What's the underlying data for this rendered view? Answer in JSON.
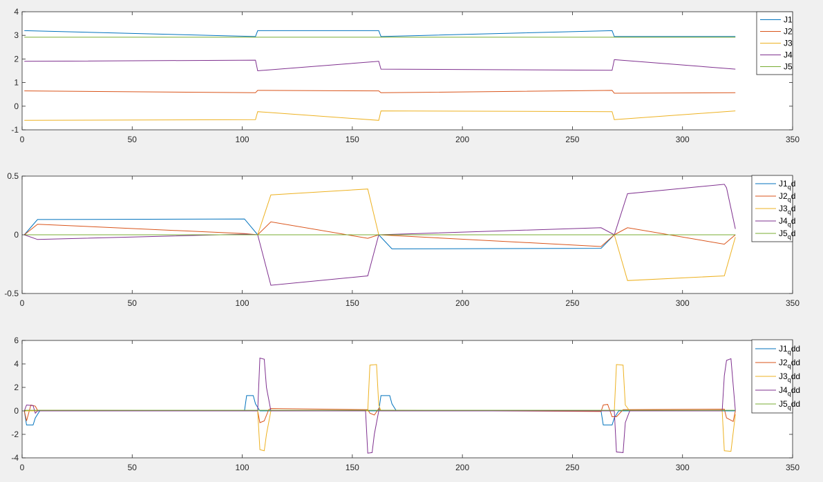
{
  "chart_data": [
    {
      "type": "line",
      "title": "",
      "xlabel": "",
      "ylabel": "",
      "xlim": [
        0,
        350
      ],
      "ylim": [
        -1,
        4
      ],
      "xticks": [
        "0",
        "50",
        "100",
        "150",
        "200",
        "250",
        "300",
        "350"
      ],
      "yticks": [
        "-1",
        "0",
        "1",
        "2",
        "3",
        "4"
      ],
      "legend_position": "top-right",
      "series": [
        {
          "name": "J1",
          "color": "#0072bd",
          "x": [
            1,
            106,
            107,
            162,
            163,
            268,
            269,
            324
          ],
          "y": [
            3.2,
            2.95,
            3.2,
            3.2,
            2.95,
            3.2,
            2.95,
            2.95
          ]
        },
        {
          "name": "J2",
          "color": "#d95319",
          "x": [
            1,
            106,
            107,
            162,
            163,
            268,
            269,
            324
          ],
          "y": [
            0.65,
            0.57,
            0.67,
            0.65,
            0.57,
            0.67,
            0.55,
            0.57
          ]
        },
        {
          "name": "J3",
          "color": "#edb120",
          "x": [
            1,
            106,
            107,
            162,
            163,
            268,
            269,
            324
          ],
          "y": [
            -0.6,
            -0.57,
            -0.23,
            -0.6,
            -0.2,
            -0.23,
            -0.57,
            -0.2
          ]
        },
        {
          "name": "J4",
          "color": "#7e2f8e",
          "x": [
            1,
            106,
            107,
            162,
            163,
            268,
            269,
            324
          ],
          "y": [
            1.9,
            1.95,
            1.5,
            1.9,
            1.57,
            1.52,
            1.97,
            1.57
          ]
        },
        {
          "name": "J5",
          "color": "#77ac30",
          "x": [
            1,
            324
          ],
          "y": [
            2.92,
            2.92
          ]
        }
      ]
    },
    {
      "type": "line",
      "title": "",
      "xlabel": "",
      "ylabel": "",
      "xlim": [
        0,
        350
      ],
      "ylim": [
        -0.5,
        0.5
      ],
      "xticks": [
        "0",
        "50",
        "100",
        "150",
        "200",
        "250",
        "300",
        "350"
      ],
      "yticks": [
        "-0.5",
        "0",
        "0.5"
      ],
      "legend_position": "top-right",
      "series": [
        {
          "name": "J1",
          "sub": "q",
          "suffix": "d",
          "color": "#0072bd",
          "x": [
            1,
            7,
            101,
            107,
            162,
            168,
            263,
            269,
            324
          ],
          "y": [
            0,
            0.13,
            0.135,
            0,
            0,
            -0.12,
            -0.115,
            0,
            0
          ]
        },
        {
          "name": "J2",
          "sub": "q",
          "suffix": "d",
          "color": "#d95319",
          "x": [
            1,
            7,
            101,
            107,
            113,
            157,
            162,
            263,
            269,
            275,
            319,
            324
          ],
          "y": [
            0,
            0.09,
            0.01,
            0,
            0.11,
            -0.03,
            0,
            -0.1,
            0,
            0.06,
            -0.08,
            0
          ]
        },
        {
          "name": "J3",
          "sub": "q",
          "suffix": "d",
          "color": "#edb120",
          "x": [
            1,
            107,
            113,
            157,
            162,
            263,
            269,
            275,
            319,
            324
          ],
          "y": [
            0,
            0,
            0.34,
            0.39,
            0,
            0,
            0,
            -0.39,
            -0.35,
            -0.02
          ]
        },
        {
          "name": "J4",
          "sub": "q",
          "suffix": "d",
          "color": "#7e2f8e",
          "x": [
            1,
            7,
            101,
            107,
            113,
            157,
            162,
            263,
            269,
            275,
            319,
            320,
            324
          ],
          "y": [
            0,
            -0.04,
            0.005,
            0,
            -0.43,
            -0.35,
            0,
            0.06,
            0,
            0.35,
            0.43,
            0.4,
            0.05
          ]
        },
        {
          "name": "J5",
          "sub": "q",
          "suffix": "d",
          "color": "#77ac30",
          "x": [
            1,
            324
          ],
          "y": [
            0,
            0
          ]
        }
      ]
    },
    {
      "type": "line",
      "title": "",
      "xlabel": "",
      "ylabel": "",
      "xlim": [
        0,
        350
      ],
      "ylim": [
        -4,
        6
      ],
      "xticks": [
        "0",
        "50",
        "100",
        "150",
        "200",
        "250",
        "300",
        "350"
      ],
      "yticks": [
        "-4",
        "-2",
        "0",
        "2",
        "4",
        "6"
      ],
      "legend_position": "top-right",
      "series": [
        {
          "name": "J1",
          "sub": "q",
          "suffix": "dd",
          "color": "#0072bd",
          "x": [
            1,
            2,
            3,
            5,
            6,
            8,
            101,
            102,
            104,
            105,
            106,
            108,
            162,
            163,
            165,
            167,
            168,
            170,
            263,
            264,
            266,
            268,
            269,
            271,
            324
          ],
          "y": [
            0,
            -1.2,
            -1.2,
            -1.2,
            -0.6,
            0,
            0,
            1.3,
            1.3,
            1.3,
            0.6,
            0,
            0,
            1.3,
            1.3,
            1.3,
            0.6,
            0,
            0,
            -1.2,
            -1.2,
            -1.2,
            -0.6,
            0,
            0
          ]
        },
        {
          "name": "J2",
          "sub": "q",
          "suffix": "dd",
          "color": "#d95319",
          "x": [
            1,
            2,
            4,
            6,
            7,
            101,
            107,
            108,
            110,
            112,
            113,
            157,
            158,
            160,
            162,
            163,
            263,
            264,
            266,
            268,
            270,
            273,
            319,
            320,
            322,
            323,
            324
          ],
          "y": [
            0,
            -0.85,
            0.5,
            0.4,
            0.05,
            0.01,
            0,
            -1.0,
            -0.85,
            0.1,
            0.2,
            0.1,
            -0.2,
            -0.35,
            0.2,
            0.05,
            -0.05,
            0.5,
            0.55,
            -0.5,
            -0.5,
            0.1,
            0.15,
            -0.6,
            -0.8,
            -0.9,
            0
          ]
        },
        {
          "name": "J3",
          "sub": "q",
          "suffix": "dd",
          "color": "#edb120",
          "x": [
            1,
            107,
            108,
            110,
            111,
            113,
            157,
            158,
            161,
            162,
            163,
            269,
            270,
            273,
            274,
            276,
            318,
            319,
            322,
            324
          ],
          "y": [
            0,
            0,
            -3.3,
            -3.4,
            -2.0,
            0,
            0,
            3.9,
            3.95,
            0.5,
            0,
            0,
            3.95,
            3.9,
            0.5,
            0,
            0,
            -3.4,
            -3.45,
            -0.3
          ]
        },
        {
          "name": "J4",
          "sub": "q",
          "suffix": "dd",
          "color": "#7e2f8e",
          "x": [
            1,
            2,
            5,
            6,
            7,
            107,
            108,
            110,
            111,
            113,
            156,
            157,
            159,
            160,
            162,
            263,
            269,
            270,
            273,
            274,
            276,
            318,
            319,
            320,
            322,
            324
          ],
          "y": [
            0,
            0.5,
            0.45,
            -0.2,
            0,
            0,
            4.5,
            4.4,
            2.0,
            0,
            0,
            -3.6,
            -3.55,
            -2.0,
            0,
            0,
            0,
            -3.5,
            -3.55,
            -1.0,
            0,
            0,
            3.0,
            4.3,
            4.45,
            0
          ]
        },
        {
          "name": "J5",
          "sub": "q",
          "suffix": "dd",
          "color": "#77ac30",
          "x": [
            1,
            324
          ],
          "y": [
            0.05,
            0.05
          ]
        }
      ]
    }
  ]
}
